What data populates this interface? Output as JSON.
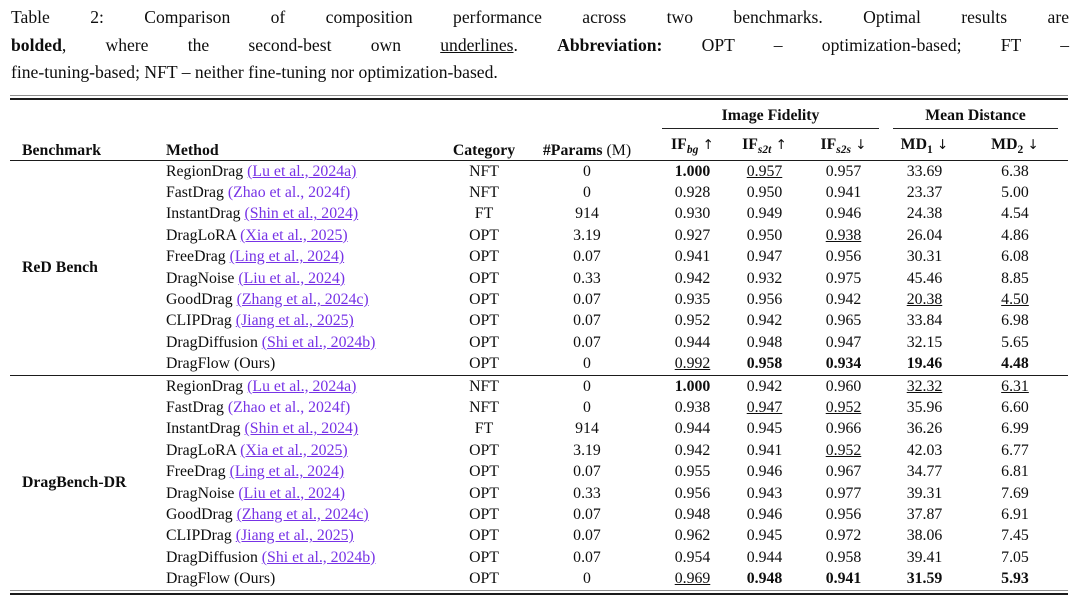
{
  "caption": {
    "lines": [
      [
        {
          "t": "Table 2: Comparison of composition performance across two benchmarks. Optimal results are"
        }
      ],
      [
        {
          "t": "bolded",
          "b": true
        },
        {
          "t": ", where the second-best own "
        },
        {
          "t": "underlines",
          "u": true
        },
        {
          "t": ". "
        },
        {
          "t": "Abbreviation:",
          "b": true
        },
        {
          "t": " OPT – optimization-based; FT –"
        }
      ],
      [
        {
          "t": "fine-tuning-based; NFT – neither fine-tuning nor optimization-based."
        }
      ]
    ]
  },
  "table": {
    "link_color": "#7733e6",
    "headers": {
      "benchmark": "Benchmark",
      "method": "Method",
      "category": "Category",
      "params_label": "#Params",
      "params_unit": " (M)",
      "group_if": "Image Fidelity",
      "group_md": "Mean Distance",
      "subheaders": [
        {
          "base": "IF",
          "sub": "bg",
          "italic_sub": true,
          "arrow": "↑"
        },
        {
          "base": "IF",
          "sub": "s2t",
          "italic_sub": true,
          "arrow": "↑"
        },
        {
          "base": "IF",
          "sub": "s2s",
          "italic_sub": true,
          "arrow": "↓"
        },
        {
          "base": "MD",
          "sub": "1",
          "italic_sub": false,
          "arrow": "↓"
        },
        {
          "base": "MD",
          "sub": "2",
          "italic_sub": false,
          "arrow": "↓"
        }
      ]
    },
    "sections": [
      {
        "benchmark": "ReD Bench",
        "rows": [
          {
            "method": "RegionDrag",
            "cite": "(Lu et al., 2024a)",
            "cite_u": true,
            "category": "NFT",
            "params": "0",
            "vals": [
              [
                "1.000",
                "b"
              ],
              [
                "0.957",
                "u"
              ],
              [
                "0.957",
                ""
              ],
              [
                "33.69",
                ""
              ],
              [
                "6.38",
                ""
              ]
            ]
          },
          {
            "method": "FastDrag",
            "cite": "(Zhao et al., 2024f)",
            "cite_u": false,
            "category": "NFT",
            "params": "0",
            "vals": [
              [
                "0.928",
                ""
              ],
              [
                "0.950",
                ""
              ],
              [
                "0.941",
                ""
              ],
              [
                "23.37",
                ""
              ],
              [
                "5.00",
                ""
              ]
            ]
          },
          {
            "method": "InstantDrag",
            "cite": "(Shin et al., 2024)",
            "cite_u": true,
            "category": "FT",
            "params": "914",
            "vals": [
              [
                "0.930",
                ""
              ],
              [
                "0.949",
                ""
              ],
              [
                "0.946",
                ""
              ],
              [
                "24.38",
                ""
              ],
              [
                "4.54",
                ""
              ]
            ]
          },
          {
            "method": "DragLoRA",
            "cite": "(Xia et al., 2025)",
            "cite_u": true,
            "category": "OPT",
            "params": "3.19",
            "vals": [
              [
                "0.927",
                ""
              ],
              [
                "0.950",
                ""
              ],
              [
                "0.938",
                "u"
              ],
              [
                "26.04",
                ""
              ],
              [
                "4.86",
                ""
              ]
            ]
          },
          {
            "method": "FreeDrag",
            "cite": "(Ling et al., 2024)",
            "cite_u": true,
            "category": "OPT",
            "params": "0.07",
            "vals": [
              [
                "0.941",
                ""
              ],
              [
                "0.947",
                ""
              ],
              [
                "0.956",
                ""
              ],
              [
                "30.31",
                ""
              ],
              [
                "6.08",
                ""
              ]
            ]
          },
          {
            "method": "DragNoise",
            "cite": "(Liu et al., 2024)",
            "cite_u": true,
            "category": "OPT",
            "params": "0.33",
            "vals": [
              [
                "0.942",
                ""
              ],
              [
                "0.932",
                ""
              ],
              [
                "0.975",
                ""
              ],
              [
                "45.46",
                ""
              ],
              [
                "8.85",
                ""
              ]
            ]
          },
          {
            "method": "GoodDrag",
            "cite": "(Zhang et al., 2024c)",
            "cite_u": true,
            "category": "OPT",
            "params": "0.07",
            "vals": [
              [
                "0.935",
                ""
              ],
              [
                "0.956",
                ""
              ],
              [
                "0.942",
                ""
              ],
              [
                "20.38",
                "u"
              ],
              [
                "4.50",
                "u"
              ]
            ]
          },
          {
            "method": "CLIPDrag",
            "cite": "(Jiang et al., 2025)",
            "cite_u": true,
            "category": "OPT",
            "params": "0.07",
            "vals": [
              [
                "0.952",
                ""
              ],
              [
                "0.942",
                ""
              ],
              [
                "0.965",
                ""
              ],
              [
                "33.84",
                ""
              ],
              [
                "6.98",
                ""
              ]
            ]
          },
          {
            "method": "DragDiffusion",
            "cite": "(Shi et al., 2024b)",
            "cite_u": true,
            "category": "OPT",
            "params": "0.07",
            "vals": [
              [
                "0.944",
                ""
              ],
              [
                "0.948",
                ""
              ],
              [
                "0.947",
                ""
              ],
              [
                "32.15",
                ""
              ],
              [
                "5.65",
                ""
              ]
            ]
          },
          {
            "method": "DragFlow",
            "cite": "(Ours)",
            "plain": true,
            "category": "OPT",
            "params": "0",
            "vals": [
              [
                "0.992",
                "u"
              ],
              [
                "0.958",
                "b"
              ],
              [
                "0.934",
                "b"
              ],
              [
                "19.46",
                "b"
              ],
              [
                "4.48",
                "b"
              ]
            ]
          }
        ]
      },
      {
        "benchmark": "DragBench-DR",
        "rows": [
          {
            "method": "RegionDrag",
            "cite": "(Lu et al., 2024a)",
            "cite_u": true,
            "category": "NFT",
            "params": "0",
            "vals": [
              [
                "1.000",
                "b"
              ],
              [
                "0.942",
                ""
              ],
              [
                "0.960",
                ""
              ],
              [
                "32.32",
                "u"
              ],
              [
                "6.31",
                "u"
              ]
            ]
          },
          {
            "method": "FastDrag",
            "cite": "(Zhao et al., 2024f)",
            "cite_u": false,
            "category": "NFT",
            "params": "0",
            "vals": [
              [
                "0.938",
                ""
              ],
              [
                "0.947",
                "u"
              ],
              [
                "0.952",
                "u"
              ],
              [
                "35.96",
                ""
              ],
              [
                "6.60",
                ""
              ]
            ]
          },
          {
            "method": "InstantDrag",
            "cite": "(Shin et al., 2024)",
            "cite_u": true,
            "category": "FT",
            "params": "914",
            "vals": [
              [
                "0.944",
                ""
              ],
              [
                "0.945",
                ""
              ],
              [
                "0.966",
                ""
              ],
              [
                "36.26",
                ""
              ],
              [
                "6.99",
                ""
              ]
            ]
          },
          {
            "method": "DragLoRA",
            "cite": "(Xia et al., 2025)",
            "cite_u": true,
            "category": "OPT",
            "params": "3.19",
            "vals": [
              [
                "0.942",
                ""
              ],
              [
                "0.941",
                ""
              ],
              [
                "0.952",
                "u"
              ],
              [
                "42.03",
                ""
              ],
              [
                "6.77",
                ""
              ]
            ]
          },
          {
            "method": "FreeDrag",
            "cite": "(Ling et al., 2024)",
            "cite_u": true,
            "category": "OPT",
            "params": "0.07",
            "vals": [
              [
                "0.955",
                ""
              ],
              [
                "0.946",
                ""
              ],
              [
                "0.967",
                ""
              ],
              [
                "34.77",
                ""
              ],
              [
                "6.81",
                ""
              ]
            ]
          },
          {
            "method": "DragNoise",
            "cite": "(Liu et al., 2024)",
            "cite_u": true,
            "category": "OPT",
            "params": "0.33",
            "vals": [
              [
                "0.956",
                ""
              ],
              [
                "0.943",
                ""
              ],
              [
                "0.977",
                ""
              ],
              [
                "39.31",
                ""
              ],
              [
                "7.69",
                ""
              ]
            ]
          },
          {
            "method": "GoodDrag",
            "cite": "(Zhang et al., 2024c)",
            "cite_u": true,
            "category": "OPT",
            "params": "0.07",
            "vals": [
              [
                "0.948",
                ""
              ],
              [
                "0.946",
                ""
              ],
              [
                "0.956",
                ""
              ],
              [
                "37.87",
                ""
              ],
              [
                "6.91",
                ""
              ]
            ]
          },
          {
            "method": "CLIPDrag",
            "cite": "(Jiang et al., 2025)",
            "cite_u": true,
            "category": "OPT",
            "params": "0.07",
            "vals": [
              [
                "0.962",
                ""
              ],
              [
                "0.945",
                ""
              ],
              [
                "0.972",
                ""
              ],
              [
                "38.06",
                ""
              ],
              [
                "7.45",
                ""
              ]
            ]
          },
          {
            "method": "DragDiffusion",
            "cite": "(Shi et al., 2024b)",
            "cite_u": true,
            "category": "OPT",
            "params": "0.07",
            "vals": [
              [
                "0.954",
                ""
              ],
              [
                "0.944",
                ""
              ],
              [
                "0.958",
                ""
              ],
              [
                "39.41",
                ""
              ],
              [
                "7.05",
                ""
              ]
            ]
          },
          {
            "method": "DragFlow",
            "cite": "(Ours)",
            "plain": true,
            "category": "OPT",
            "params": "0",
            "vals": [
              [
                "0.969",
                "u"
              ],
              [
                "0.948",
                "b"
              ],
              [
                "0.941",
                "b"
              ],
              [
                "31.59",
                "b"
              ],
              [
                "5.93",
                "b"
              ]
            ]
          }
        ]
      }
    ]
  }
}
